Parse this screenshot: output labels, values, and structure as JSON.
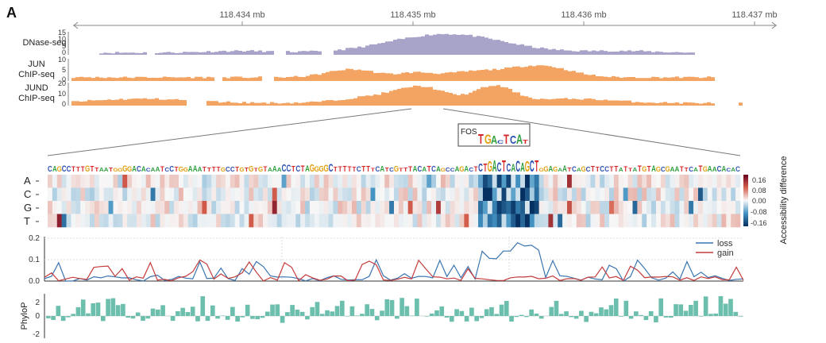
{
  "chart_data": {
    "type": "composite-genomics-figure",
    "panel_label": "A",
    "genome_axis": {
      "ticks": [
        "118.434 mb",
        "118.435 mb",
        "118.436 mb",
        "118.437 mb"
      ]
    },
    "tracks": [
      {
        "name": "DNase-seq",
        "label_lines": [
          "DNase-seq"
        ],
        "ticks": [
          "15",
          "10",
          "5",
          "0"
        ],
        "ylim": [
          0,
          16
        ],
        "color": "#a8a3c9"
      },
      {
        "name": "JUN ChIP-seq",
        "label_lines": [
          "JUN",
          "ChIP-seq"
        ],
        "ticks": [
          "10",
          "5",
          "0"
        ],
        "ylim": [
          0,
          11
        ],
        "color": "#f4a462"
      },
      {
        "name": "JUND ChIP-seq",
        "label_lines": [
          "JUND",
          "ChIP-seq"
        ],
        "ticks": [
          "20",
          "10",
          "0"
        ],
        "ylim": [
          0,
          22
        ],
        "color": "#f4a462"
      }
    ],
    "motif": {
      "name": "FOS",
      "consensus": "TGACTCAT"
    },
    "sequence": "CAGCCTTTGTTAATGGGGACACAATCCTGGAAATTTTGCCTGTGTGTAAACCTCTAGGGGCTTTTTCTTTCATCGTTTACATCAGCCAGACTCTGACTCACAGCTGGAGAATCAGCTTCCTTATTATGTAGCGAATTCATGAACACAC",
    "heatmap": {
      "rows": [
        "A",
        "C",
        "G",
        "T"
      ],
      "colorbar_ticks": [
        "0.16",
        "0.08",
        "0.00",
        "-0.08",
        "-0.16"
      ],
      "colorbar_label": "Accessibility difference",
      "range": [
        -0.16,
        0.16
      ]
    },
    "line_chart": {
      "type": "line",
      "ylim": [
        0,
        0.2
      ],
      "yticks": [
        "0.2",
        "0.1",
        "0.0"
      ],
      "legend_position": "top-right",
      "series": [
        {
          "name": "loss",
          "color": "#3a75b0"
        },
        {
          "name": "gain",
          "color": "#c43b3b"
        }
      ]
    },
    "phylop": {
      "type": "bar",
      "ylabel": "PhyloP",
      "ylim": [
        -2.5,
        2.5
      ],
      "yticks": [
        "2",
        "0",
        "-2"
      ],
      "color": "#6cbfad"
    }
  }
}
